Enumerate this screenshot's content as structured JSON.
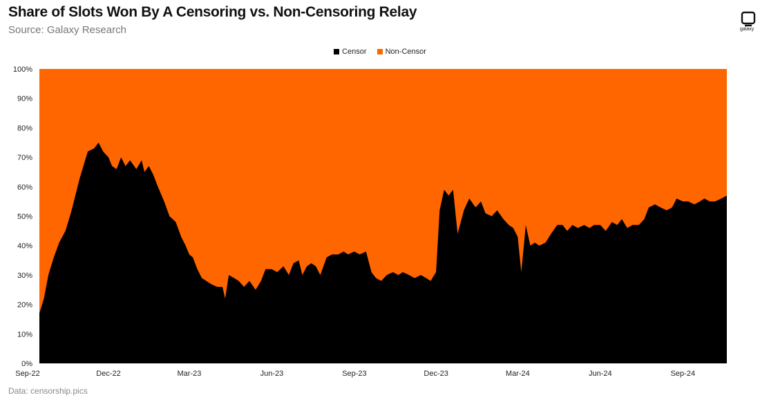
{
  "header": {
    "title": "Share of Slots Won By A Censoring vs. Non-Censoring Relay",
    "subtitle": "Source: Galaxy Research",
    "logo_text": "galaxy"
  },
  "footer": {
    "note": "Data: censorship.pics"
  },
  "colors": {
    "censor": "#000000",
    "non_censor": "#ff6600"
  },
  "chart_data": {
    "type": "area",
    "stacked": true,
    "percent": true,
    "legend_position": "top-center",
    "grid": false,
    "ylim": [
      0,
      100
    ],
    "yticks": [
      "0%",
      "10%",
      "20%",
      "30%",
      "40%",
      "50%",
      "60%",
      "70%",
      "80%",
      "90%",
      "100%"
    ],
    "xticks": [
      "Sep-22",
      "Dec-22",
      "Mar-23",
      "Jun-23",
      "Sep-23",
      "Dec-23",
      "Mar-24",
      "Jun-24",
      "Sep-24"
    ],
    "x_range": [
      "2022-09-15",
      "2024-10-20"
    ],
    "series": [
      {
        "name": "Censor",
        "points": [
          [
            "2022-09-15",
            17
          ],
          [
            "2022-09-20",
            22
          ],
          [
            "2022-09-25",
            30
          ],
          [
            "2022-10-01",
            36
          ],
          [
            "2022-10-07",
            41
          ],
          [
            "2022-10-14",
            45
          ],
          [
            "2022-10-20",
            51
          ],
          [
            "2022-10-25",
            57
          ],
          [
            "2022-10-30",
            63
          ],
          [
            "2022-11-05",
            69
          ],
          [
            "2022-11-08",
            72
          ],
          [
            "2022-11-15",
            73
          ],
          [
            "2022-11-20",
            75
          ],
          [
            "2022-11-25",
            72
          ],
          [
            "2022-12-01",
            70
          ],
          [
            "2022-12-05",
            67
          ],
          [
            "2022-12-10",
            66
          ],
          [
            "2022-12-15",
            70
          ],
          [
            "2022-12-20",
            67
          ],
          [
            "2022-12-25",
            69
          ],
          [
            "2023-01-01",
            66
          ],
          [
            "2023-01-07",
            69
          ],
          [
            "2023-01-10",
            65
          ],
          [
            "2023-01-15",
            67
          ],
          [
            "2023-01-20",
            64
          ],
          [
            "2023-01-25",
            60
          ],
          [
            "2023-02-01",
            55
          ],
          [
            "2023-02-07",
            50
          ],
          [
            "2023-02-14",
            48
          ],
          [
            "2023-02-20",
            43
          ],
          [
            "2023-02-25",
            40
          ],
          [
            "2023-03-01",
            37
          ],
          [
            "2023-03-05",
            36
          ],
          [
            "2023-03-10",
            32
          ],
          [
            "2023-03-15",
            29
          ],
          [
            "2023-03-20",
            28
          ],
          [
            "2023-03-25",
            27
          ],
          [
            "2023-04-01",
            26
          ],
          [
            "2023-04-07",
            26
          ],
          [
            "2023-04-10",
            22
          ],
          [
            "2023-04-14",
            30
          ],
          [
            "2023-04-20",
            29
          ],
          [
            "2023-04-25",
            28
          ],
          [
            "2023-05-01",
            26
          ],
          [
            "2023-05-07",
            28
          ],
          [
            "2023-05-14",
            25
          ],
          [
            "2023-05-20",
            28
          ],
          [
            "2023-05-25",
            32
          ],
          [
            "2023-06-01",
            32
          ],
          [
            "2023-06-07",
            31
          ],
          [
            "2023-06-14",
            33
          ],
          [
            "2023-06-20",
            30
          ],
          [
            "2023-06-25",
            34
          ],
          [
            "2023-07-01",
            35
          ],
          [
            "2023-07-05",
            30
          ],
          [
            "2023-07-10",
            33
          ],
          [
            "2023-07-15",
            34
          ],
          [
            "2023-07-20",
            33
          ],
          [
            "2023-07-25",
            30
          ],
          [
            "2023-08-01",
            36
          ],
          [
            "2023-08-07",
            37
          ],
          [
            "2023-08-14",
            37
          ],
          [
            "2023-08-20",
            38
          ],
          [
            "2023-08-25",
            37
          ],
          [
            "2023-09-01",
            38
          ],
          [
            "2023-09-07",
            37
          ],
          [
            "2023-09-14",
            38
          ],
          [
            "2023-09-20",
            31
          ],
          [
            "2023-09-25",
            29
          ],
          [
            "2023-10-01",
            28
          ],
          [
            "2023-10-07",
            30
          ],
          [
            "2023-10-14",
            31
          ],
          [
            "2023-10-20",
            30
          ],
          [
            "2023-10-25",
            31
          ],
          [
            "2023-11-01",
            30
          ],
          [
            "2023-11-07",
            29
          ],
          [
            "2023-11-14",
            30
          ],
          [
            "2023-11-20",
            29
          ],
          [
            "2023-11-25",
            28
          ],
          [
            "2023-12-01",
            31
          ],
          [
            "2023-12-05",
            52
          ],
          [
            "2023-12-10",
            59
          ],
          [
            "2023-12-15",
            57
          ],
          [
            "2023-12-20",
            59
          ],
          [
            "2023-12-25",
            44
          ],
          [
            "2024-01-01",
            52
          ],
          [
            "2024-01-07",
            56
          ],
          [
            "2024-01-14",
            53
          ],
          [
            "2024-01-20",
            55
          ],
          [
            "2024-01-25",
            51
          ],
          [
            "2024-02-01",
            50
          ],
          [
            "2024-02-07",
            52
          ],
          [
            "2024-02-14",
            49
          ],
          [
            "2024-02-20",
            47
          ],
          [
            "2024-02-25",
            46
          ],
          [
            "2024-03-01",
            43
          ],
          [
            "2024-03-05",
            31
          ],
          [
            "2024-03-10",
            47
          ],
          [
            "2024-03-15",
            40
          ],
          [
            "2024-03-20",
            41
          ],
          [
            "2024-03-25",
            40
          ],
          [
            "2024-04-01",
            41
          ],
          [
            "2024-04-07",
            44
          ],
          [
            "2024-04-14",
            47
          ],
          [
            "2024-04-20",
            47
          ],
          [
            "2024-04-25",
            45
          ],
          [
            "2024-05-01",
            47
          ],
          [
            "2024-05-07",
            46
          ],
          [
            "2024-05-14",
            47
          ],
          [
            "2024-05-20",
            46
          ],
          [
            "2024-05-25",
            47
          ],
          [
            "2024-06-01",
            47
          ],
          [
            "2024-06-07",
            45
          ],
          [
            "2024-06-14",
            48
          ],
          [
            "2024-06-20",
            47
          ],
          [
            "2024-06-25",
            49
          ],
          [
            "2024-07-01",
            46
          ],
          [
            "2024-07-07",
            47
          ],
          [
            "2024-07-14",
            47
          ],
          [
            "2024-07-20",
            49
          ],
          [
            "2024-07-25",
            53
          ],
          [
            "2024-08-01",
            54
          ],
          [
            "2024-08-07",
            53
          ],
          [
            "2024-08-14",
            52
          ],
          [
            "2024-08-20",
            53
          ],
          [
            "2024-08-25",
            56
          ],
          [
            "2024-09-01",
            55
          ],
          [
            "2024-09-07",
            55
          ],
          [
            "2024-09-14",
            54
          ],
          [
            "2024-09-20",
            55
          ],
          [
            "2024-09-25",
            56
          ],
          [
            "2024-10-01",
            55
          ],
          [
            "2024-10-07",
            55
          ],
          [
            "2024-10-14",
            56
          ],
          [
            "2024-10-20",
            57
          ]
        ]
      },
      {
        "name": "Non-Censor",
        "complement_of": "Censor"
      }
    ]
  }
}
